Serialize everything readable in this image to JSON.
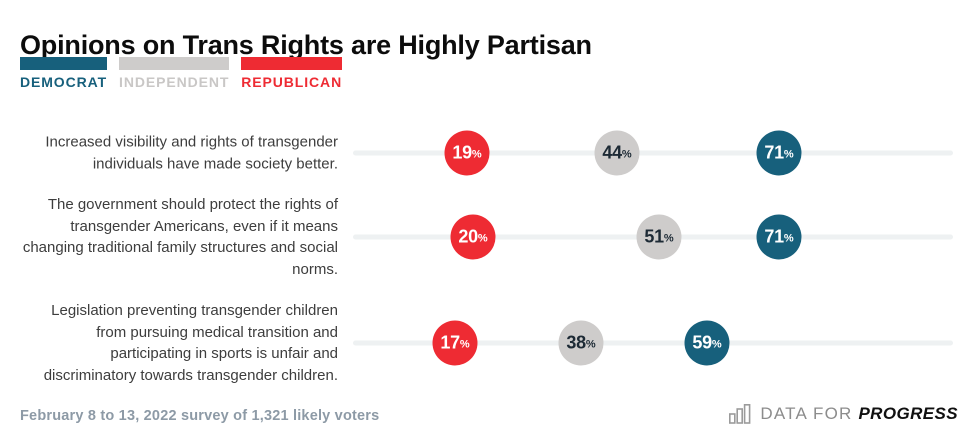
{
  "title": "Opinions on Trans Rights are Highly Partisan",
  "legend": {
    "items": [
      {
        "label": "DEMOCRAT",
        "color": "#17607c",
        "text_color": "#17607c"
      },
      {
        "label": "INDEPENDENT",
        "color": "#cecccb",
        "text_color": "#c9c7c6"
      },
      {
        "label": "REPUBLICAN",
        "color": "#ee2b33",
        "text_color": "#ee2b33"
      }
    ]
  },
  "chart_data": {
    "type": "scatter",
    "subtype": "dot-plot",
    "x_axis": {
      "min": 0,
      "max": 100,
      "unit": "%",
      "gridlines": false,
      "track_color": "#eef1f2"
    },
    "legend_position": "top-left",
    "series": [
      {
        "key": "republican",
        "name": "Republican",
        "color": "#ee2b33",
        "value_text_color": "#ffffff"
      },
      {
        "key": "independent",
        "name": "Independent",
        "color": "#cecccb",
        "value_text_color": "#1d2a35"
      },
      {
        "key": "democrat",
        "name": "Democrat",
        "color": "#17607c",
        "value_text_color": "#ffffff"
      }
    ],
    "rows": [
      {
        "statement": "Increased visibility and rights of transgender individuals have made society better.",
        "values": {
          "republican": 19,
          "independent": 44,
          "democrat": 71
        }
      },
      {
        "statement": "The government should protect the rights of transgender Americans, even if it means changing traditional family structures and social norms.",
        "values": {
          "republican": 20,
          "independent": 51,
          "democrat": 71
        }
      },
      {
        "statement": "Legislation preventing transgender children from pursuing medical transition and participating in sports is unfair and discriminatory towards transgender children.",
        "values": {
          "republican": 17,
          "independent": 38,
          "democrat": 59
        }
      }
    ],
    "percent_suffix": "%"
  },
  "footer": {
    "source": "February 8 to 13, 2022 survey of 1,321 likely voters",
    "brand_prefix": "DATA FOR",
    "brand_name": "PROGRESS"
  }
}
